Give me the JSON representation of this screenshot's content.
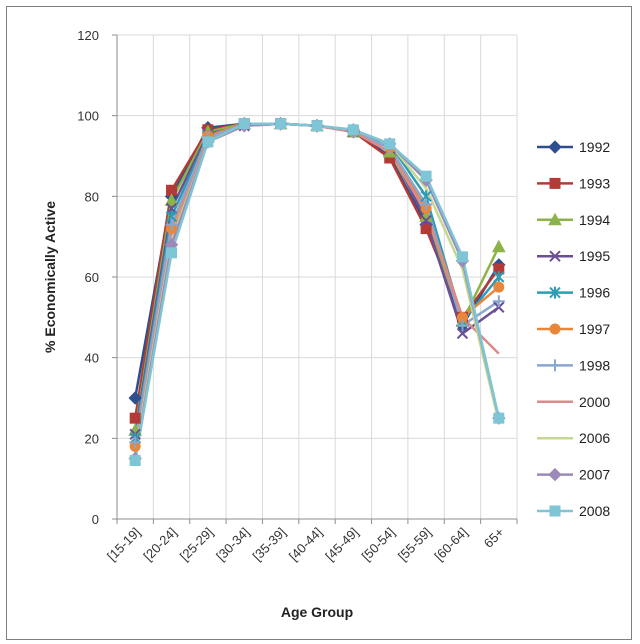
{
  "chart_data": {
    "type": "line",
    "title": "",
    "xlabel": "Age Group",
    "ylabel": "% Economically Active",
    "ylim": [
      0,
      120
    ],
    "yticks": [
      0,
      20,
      40,
      60,
      80,
      100,
      120
    ],
    "grid": true,
    "legend": "right",
    "categories": [
      "[15-19]",
      "[20-24]",
      "[25-29]",
      "[30-34]",
      "[35-39]",
      "[40-44]",
      "[45-49]",
      "[50-54]",
      "[55-59]",
      "[60-64]",
      "65+"
    ],
    "series": [
      {
        "name": "1992",
        "color": "#2e4f8f",
        "marker": "diamond",
        "values": [
          30,
          80,
          97,
          98,
          98,
          97.5,
          96,
          90,
          73,
          48,
          63
        ]
      },
      {
        "name": "1993",
        "color": "#b23b37",
        "marker": "square",
        "values": [
          25,
          81.5,
          96.5,
          98,
          98,
          97.5,
          96,
          89.5,
          72,
          50,
          62
        ]
      },
      {
        "name": "1994",
        "color": "#8cb34a",
        "marker": "triangle",
        "values": [
          22,
          79,
          96,
          98,
          98,
          97.5,
          96,
          91,
          75,
          49,
          67.5
        ]
      },
      {
        "name": "1995",
        "color": "#6a4f94",
        "marker": "x",
        "values": [
          21,
          77,
          95.5,
          97.5,
          98,
          97.5,
          96,
          92,
          74,
          46,
          52.5
        ]
      },
      {
        "name": "1996",
        "color": "#2e9cb5",
        "marker": "star",
        "values": [
          20,
          75,
          95,
          98,
          98,
          97.5,
          96,
          93,
          80,
          49,
          60
        ]
      },
      {
        "name": "1997",
        "color": "#e8873a",
        "marker": "circle",
        "values": [
          18,
          72,
          95,
          98,
          98,
          97.5,
          96,
          92,
          77,
          50,
          57.5
        ]
      },
      {
        "name": "1998",
        "color": "#8aa6cf",
        "marker": "plus",
        "values": [
          19,
          73,
          94.5,
          98,
          98,
          97.5,
          96,
          92,
          78,
          48,
          54
        ]
      },
      {
        "name": "2000",
        "color": "#d98a8a",
        "marker": "none",
        "values": [
          17,
          70,
          94,
          97.5,
          98,
          97.5,
          96,
          91,
          76,
          50,
          41
        ]
      },
      {
        "name": "2006",
        "color": "#c4d98f",
        "marker": "none",
        "values": [
          16,
          69,
          93.5,
          97.5,
          98,
          97.5,
          96.5,
          93,
          82,
          62,
          24
        ]
      },
      {
        "name": "2007",
        "color": "#9b8ab8",
        "marker": "diamond",
        "values": [
          15,
          68,
          93.5,
          97.5,
          98,
          97.5,
          96.5,
          93,
          84,
          64,
          25
        ]
      },
      {
        "name": "2008",
        "color": "#7ec6d6",
        "marker": "square",
        "values": [
          14.5,
          66,
          93.5,
          98,
          98,
          97.5,
          96.5,
          93,
          85,
          65,
          25
        ]
      }
    ]
  }
}
